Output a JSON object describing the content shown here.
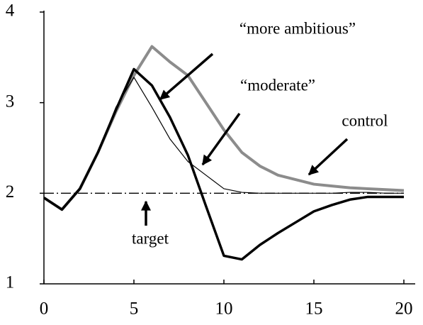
{
  "chart_data": {
    "type": "line",
    "x": [
      0,
      1,
      2,
      3,
      4,
      5,
      6,
      7,
      8,
      9,
      10,
      11,
      12,
      13,
      14,
      15,
      16,
      17,
      18,
      19,
      20
    ],
    "series": [
      {
        "name": "control",
        "color": "#8c8c8c",
        "values": [
          1.95,
          1.82,
          2.05,
          2.45,
          2.9,
          3.3,
          3.62,
          3.45,
          3.3,
          3.0,
          2.7,
          2.45,
          2.3,
          2.2,
          2.15,
          2.1,
          2.08,
          2.06,
          2.05,
          2.04,
          2.03
        ]
      },
      {
        "name": "“moderate”",
        "color": "#000000",
        "values": [
          1.95,
          1.82,
          2.05,
          2.45,
          2.95,
          3.28,
          2.95,
          2.6,
          2.35,
          2.2,
          2.05,
          2.01,
          2.0,
          2.0,
          2.0,
          2.0,
          2.0,
          2.01,
          2.01,
          2.0,
          2.0
        ]
      },
      {
        "name": "“more ambitious”",
        "color": "#000000",
        "values": [
          1.95,
          1.82,
          2.05,
          2.45,
          2.92,
          3.37,
          3.19,
          2.84,
          2.42,
          1.86,
          1.31,
          1.27,
          1.43,
          1.56,
          1.68,
          1.8,
          1.87,
          1.93,
          1.96,
          1.96,
          1.96
        ]
      },
      {
        "name": "target",
        "color": "#000000",
        "values": [
          2,
          2,
          2,
          2,
          2,
          2,
          2,
          2,
          2,
          2,
          2,
          2,
          2,
          2,
          2,
          2,
          2,
          2,
          2,
          2,
          2
        ]
      }
    ],
    "xlim": [
      0,
      20
    ],
    "ylim": [
      1,
      4
    ],
    "xticks": [
      0,
      5,
      10,
      15,
      20
    ],
    "yticks": [
      1,
      2,
      3,
      4
    ],
    "grid": false
  }
}
